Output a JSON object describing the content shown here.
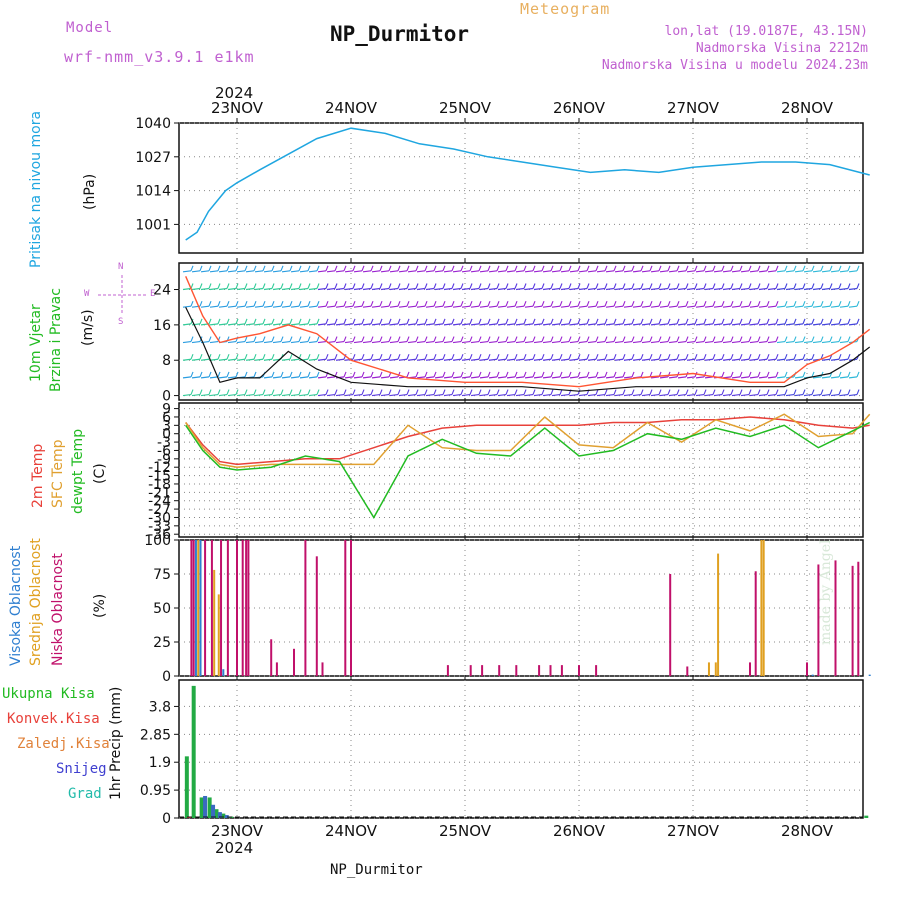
{
  "header": {
    "model_label": "Model",
    "model_name": "wrf-nmm_v3.9.1 e1km",
    "app_title": "Meteogram",
    "station_title": "NP_Durmitor",
    "coords": "lon,lat (19.0187E, 43.15N)",
    "altitude": "Nadmorska Visina 2212m",
    "model_altitude": "Nadmorska Visina u modelu 2024.23m",
    "year": "2024",
    "credit": "made by Angel",
    "footer_station": "NP_Durmitor"
  },
  "colors": {
    "pressure": "#1fa6e0",
    "temp2m": "#e8413a",
    "sfc": "#e0a030",
    "dewpt": "#22bb22",
    "wind_speed": "#111111",
    "gust": "#ff5533",
    "cloud_high": "#2f7fd0",
    "cloud_mid": "#e0a020",
    "cloud_low": "#c0106a",
    "rain": "#22aa44",
    "grid": "#888888",
    "label_purple": "#c060d0"
  },
  "chart_data": [
    {
      "type": "line",
      "panel": "pressure",
      "ylabel_main": "Pritisak na nivou mora",
      "ylabel_unit": "(hPa)",
      "ylim": [
        990,
        1040
      ],
      "yticks": [
        1001,
        1014,
        1027,
        1040
      ],
      "xlabels": [
        "23NOV",
        "24NOV",
        "25NOV",
        "26NOV",
        "27NOV",
        "28NOV"
      ],
      "x": [
        -0.45,
        -0.35,
        -0.25,
        -0.1,
        0.0,
        0.2,
        0.45,
        0.7,
        1.0,
        1.3,
        1.6,
        1.9,
        2.2,
        2.5,
        2.8,
        3.1,
        3.4,
        3.7,
        4.0,
        4.3,
        4.6,
        4.9,
        5.2,
        5.55
      ],
      "series": [
        {
          "values": [
            995,
            998,
            1006,
            1014,
            1017,
            1022,
            1028,
            1034,
            1038,
            1036,
            1032,
            1030,
            1027,
            1025,
            1023,
            1021,
            1022,
            1021,
            1023,
            1024,
            1025,
            1025,
            1024,
            1020
          ]
        }
      ]
    },
    {
      "type": "line",
      "panel": "wind",
      "ylabel_main": "10m Vjetar",
      "ylabel_sub": "Brzina i Pravac",
      "ylabel_unit": "(m/s)",
      "compass_labels": {
        "n": "N",
        "s": "S",
        "e": "E",
        "w": "W"
      },
      "ylim": [
        -1,
        30
      ],
      "yticks": [
        0,
        8,
        16,
        24
      ],
      "barb_levels": [
        0,
        4,
        8,
        12,
        16,
        20,
        24,
        28
      ],
      "x": [
        -0.45,
        -0.3,
        -0.15,
        0.0,
        0.2,
        0.45,
        0.7,
        1.0,
        1.5,
        2.0,
        2.5,
        3.0,
        3.5,
        4.0,
        4.5,
        4.8,
        5.0,
        5.2,
        5.4,
        5.55
      ],
      "series": [
        {
          "name": "speed",
          "values": [
            20,
            12,
            3,
            4,
            4,
            10,
            6,
            3,
            2,
            2,
            2,
            1,
            2,
            2,
            2,
            2,
            4,
            5,
            8,
            11
          ]
        },
        {
          "name": "gust",
          "values": [
            27,
            18,
            12,
            13,
            14,
            16,
            14,
            8,
            4,
            3,
            3,
            2,
            4,
            5,
            3,
            3,
            7,
            9,
            12,
            15
          ]
        }
      ]
    },
    {
      "type": "line",
      "panel": "temperature",
      "ylabel_parts": [
        "2m Temp",
        "SFC Temp",
        "dewpt Temp"
      ],
      "ylabel_unit": "(C)",
      "ylim": [
        -37,
        11
      ],
      "yticks": [
        9,
        6,
        3,
        0,
        -3,
        -6,
        -9,
        -12,
        -15,
        -18,
        -21,
        -24,
        -27,
        -30,
        -33,
        -36
      ],
      "x": [
        -0.45,
        -0.3,
        -0.15,
        0.0,
        0.3,
        0.6,
        0.9,
        1.2,
        1.5,
        1.8,
        2.1,
        2.4,
        2.7,
        3.0,
        3.3,
        3.6,
        3.9,
        4.2,
        4.5,
        4.8,
        5.1,
        5.4,
        5.55
      ],
      "series": [
        {
          "name": "2m",
          "values": [
            4,
            -4,
            -10,
            -11,
            -10,
            -9,
            -9,
            -5,
            -1,
            2,
            3,
            3,
            3,
            3,
            4,
            4,
            5,
            5,
            6,
            5,
            3,
            2,
            3
          ]
        },
        {
          "name": "sfc",
          "values": [
            4,
            -5,
            -11,
            -12,
            -11,
            -11,
            -11,
            -11,
            3,
            -5,
            -6,
            -6,
            6,
            -4,
            -5,
            4,
            -3,
            5,
            1,
            7,
            -1,
            0,
            7
          ]
        },
        {
          "name": "dewpt",
          "values": [
            3,
            -6,
            -12,
            -13,
            -12,
            -8,
            -10,
            -30,
            -8,
            -2,
            -7,
            -8,
            2,
            -8,
            -6,
            0,
            -2,
            2,
            -1,
            3,
            -5,
            1,
            4
          ]
        }
      ]
    },
    {
      "type": "bar",
      "panel": "cloud",
      "ylabel_parts": [
        "Visoka Oblacnost",
        "Srednja Oblacnost",
        "Niska Oblacnost"
      ],
      "ylabel_unit": "(%)",
      "ylim": [
        0,
        100
      ],
      "yticks": [
        0,
        25,
        50,
        75,
        100
      ],
      "series": [
        {
          "name": "high",
          "x": [
            -0.36,
            -0.32,
            -0.12,
            5.05,
            5.55
          ],
          "values": [
            100,
            100,
            5,
            1,
            1
          ]
        },
        {
          "name": "mid",
          "x": [
            -0.34,
            -0.2,
            -0.16,
            4.14,
            4.2,
            4.22,
            4.6,
            4.62
          ],
          "values": [
            100,
            78,
            60,
            10,
            10,
            90,
            100,
            100
          ]
        },
        {
          "name": "low",
          "x": [
            -0.4,
            -0.38,
            -0.28,
            -0.22,
            -0.14,
            -0.08,
            0.0,
            0.05,
            0.08,
            0.1,
            0.3,
            0.35,
            0.5,
            0.6,
            0.7,
            0.75,
            0.95,
            1.0,
            1.85,
            2.05,
            2.15,
            2.3,
            2.45,
            2.65,
            2.75,
            2.85,
            3.0,
            3.15,
            3.8,
            3.95,
            4.5,
            4.55,
            5.0,
            5.1,
            5.25,
            5.4,
            5.45
          ],
          "values": [
            100,
            100,
            100,
            100,
            100,
            100,
            100,
            100,
            100,
            100,
            27,
            10,
            20,
            100,
            88,
            10,
            100,
            100,
            8,
            8,
            8,
            8,
            8,
            8,
            8,
            8,
            8,
            8,
            75,
            7,
            10,
            77,
            10,
            82,
            85,
            81,
            84
          ]
        }
      ]
    },
    {
      "type": "bar",
      "panel": "precip",
      "ylabel_parts": [
        "Ukupna Kisa",
        "Konvek.Kisa",
        "Zaledj.Kisa",
        "Snijeg",
        "Grad"
      ],
      "ylabel_unit": "1hr Precip (mm)",
      "ylim": [
        0,
        4.7
      ],
      "yticks": [
        0,
        0.95,
        1.9,
        2.85,
        3.8
      ],
      "series": [
        {
          "name": "total",
          "x": [
            -0.44,
            -0.38,
            -0.31,
            -0.24,
            -0.18,
            -0.12,
            -0.05,
            5.52
          ],
          "values": [
            2.1,
            4.5,
            0.7,
            0.7,
            0.3,
            0.15,
            0.05,
            0.08
          ]
        },
        {
          "name": "snow",
          "x": [
            -0.28,
            -0.21,
            -0.15,
            -0.09
          ],
          "values": [
            0.75,
            0.45,
            0.2,
            0.1
          ]
        },
        {
          "name": "convective",
          "x": [
            -0.42
          ],
          "values": [
            0.05
          ]
        }
      ]
    }
  ]
}
